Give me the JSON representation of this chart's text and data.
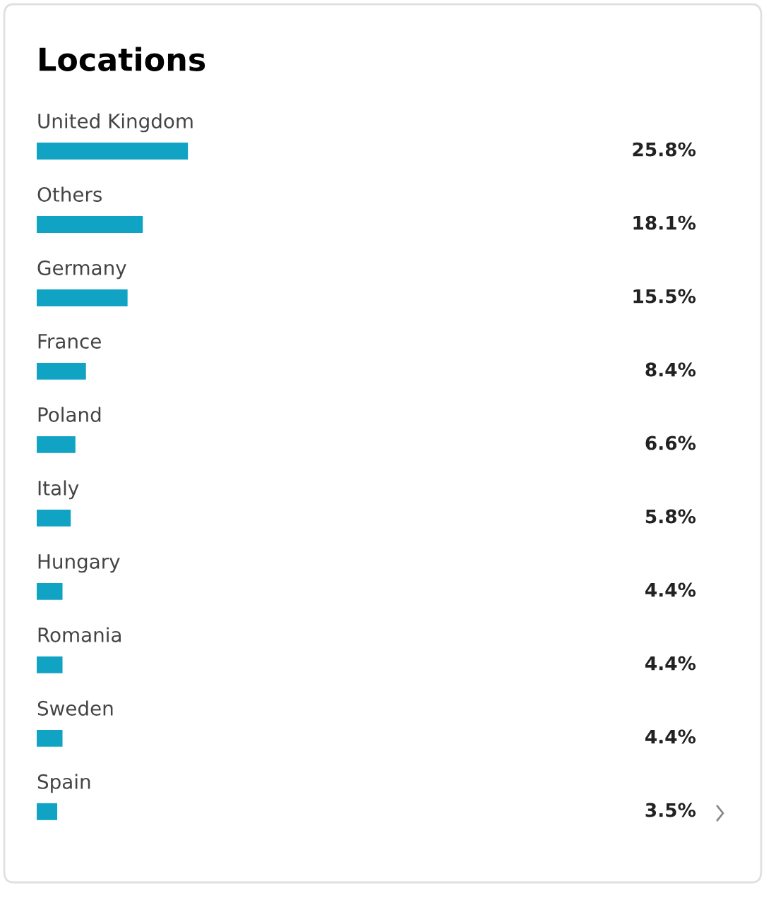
{
  "chart_data": {
    "type": "bar",
    "orientation": "horizontal",
    "title": "Locations",
    "categories": [
      "United Kingdom",
      "Others",
      "Germany",
      "France",
      "Poland",
      "Italy",
      "Hungary",
      "Romania",
      "Sweden",
      "Spain"
    ],
    "values": [
      25.8,
      18.1,
      15.5,
      8.4,
      6.6,
      5.8,
      4.4,
      4.4,
      4.4,
      3.5
    ],
    "value_labels": [
      "25.8%",
      "18.1%",
      "15.5%",
      "8.4%",
      "6.6%",
      "5.8%",
      "4.4%",
      "4.4%",
      "4.4%",
      "3.5%"
    ],
    "color": "#10a3c4"
  }
}
